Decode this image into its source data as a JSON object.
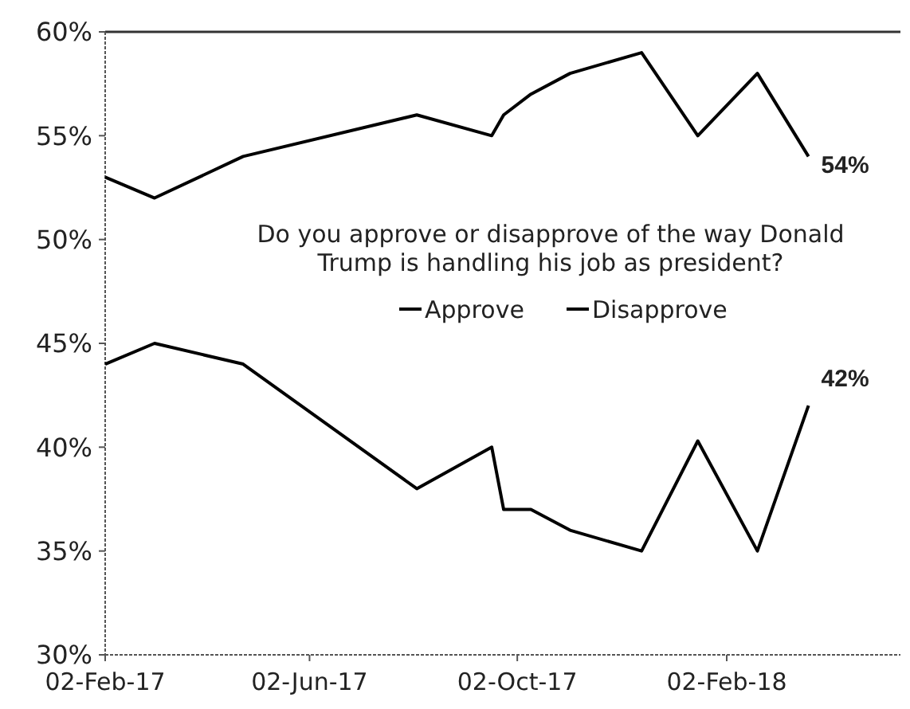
{
  "chart_data": {
    "type": "line",
    "x": [
      "2017-02-02",
      "2017-03-03",
      "2017-04-24",
      "2017-08-04",
      "2017-09-17",
      "2017-09-24",
      "2017-10-10",
      "2017-11-02",
      "2017-12-14",
      "2018-01-16",
      "2018-02-20",
      "2018-03-22"
    ],
    "series": [
      {
        "name": "Approve",
        "color": "#000000",
        "values": [
          44,
          45,
          44,
          38,
          40,
          37,
          37,
          36,
          35,
          40.3,
          35,
          42
        ],
        "value_labels": [
          null,
          null,
          null,
          null,
          null,
          null,
          null,
          null,
          null,
          null,
          null,
          "42%"
        ]
      },
      {
        "name": "Disapprove",
        "color": "#000000",
        "values": [
          53,
          52,
          54,
          56,
          55,
          56,
          57,
          58,
          59,
          55,
          58,
          54
        ],
        "value_labels": [
          null,
          null,
          null,
          null,
          null,
          null,
          null,
          null,
          null,
          null,
          null,
          "54%"
        ]
      }
    ],
    "annotations": [
      "Do you approve or disapprove of the way Donald Trump is handling his job as president?"
    ],
    "xlim": [
      "2017-02-02",
      "2018-05-15"
    ],
    "xticks": [
      {
        "value": "2017-02-02",
        "label": "02-Feb-17"
      },
      {
        "value": "2017-06-02",
        "label": "02-Jun-17"
      },
      {
        "value": "2017-10-02",
        "label": "02-Oct-17"
      },
      {
        "value": "2018-02-02",
        "label": "02-Feb-18"
      }
    ],
    "ylim": [
      30,
      60
    ],
    "yticks": [
      {
        "value": 30,
        "label": "30%"
      },
      {
        "value": 35,
        "label": "35%"
      },
      {
        "value": 40,
        "label": "40%"
      },
      {
        "value": 45,
        "label": "45%"
      },
      {
        "value": 50,
        "label": "50%"
      },
      {
        "value": 55,
        "label": "55%"
      },
      {
        "value": 60,
        "label": "60%"
      }
    ],
    "legend": "center",
    "marker": "none",
    "line_style": "solid"
  }
}
